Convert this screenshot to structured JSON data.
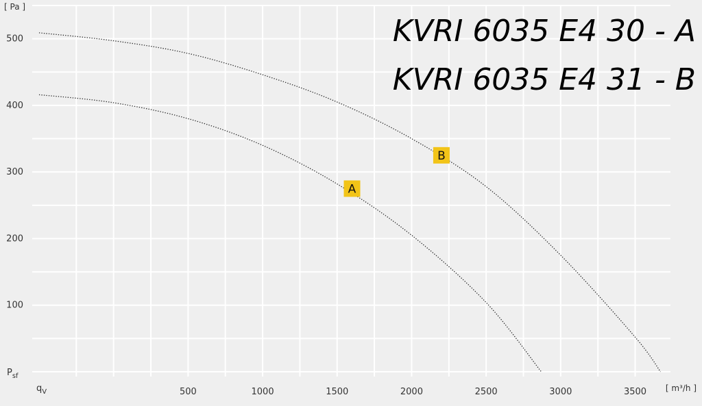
{
  "chart_data": {
    "type": "line",
    "title_lines": [
      "KVRI 6035 E4 30 - A",
      "KVRI 6035 E4 31 - B"
    ],
    "ylabel_unit": "[ Pa ]",
    "ylabel_symbol": "P",
    "ylabel_sub": "sf",
    "xlabel_unit": "[ m³/h ]",
    "xlabel_symbol": "q",
    "xlabel_sub": "V",
    "xlim": [
      -500,
      3700
    ],
    "ylim": [
      0,
      550
    ],
    "xticks": [
      500,
      1000,
      1500,
      2000,
      2500,
      3000,
      3500
    ],
    "yticks": [
      100,
      200,
      300,
      400,
      500
    ],
    "grid": true,
    "series": [
      {
        "name": "A",
        "style": "dotted",
        "x": [
          -500,
          0,
          500,
          1000,
          1500,
          2000,
          2500,
          2870
        ],
        "y": [
          416,
          404,
          380,
          340,
          282,
          205,
          104,
          0
        ],
        "label_at": [
          1600,
          275
        ]
      },
      {
        "name": "B",
        "style": "dotted",
        "x": [
          -500,
          0,
          500,
          1000,
          1500,
          2000,
          2500,
          3000,
          3500,
          3670
        ],
        "y": [
          509,
          497,
          478,
          446,
          405,
          350,
          278,
          175,
          52,
          0
        ],
        "label_at": [
          2200,
          325
        ]
      }
    ],
    "marker_color": "#f2c418",
    "line_color": "#222222",
    "grid_color": "#ffffff"
  }
}
